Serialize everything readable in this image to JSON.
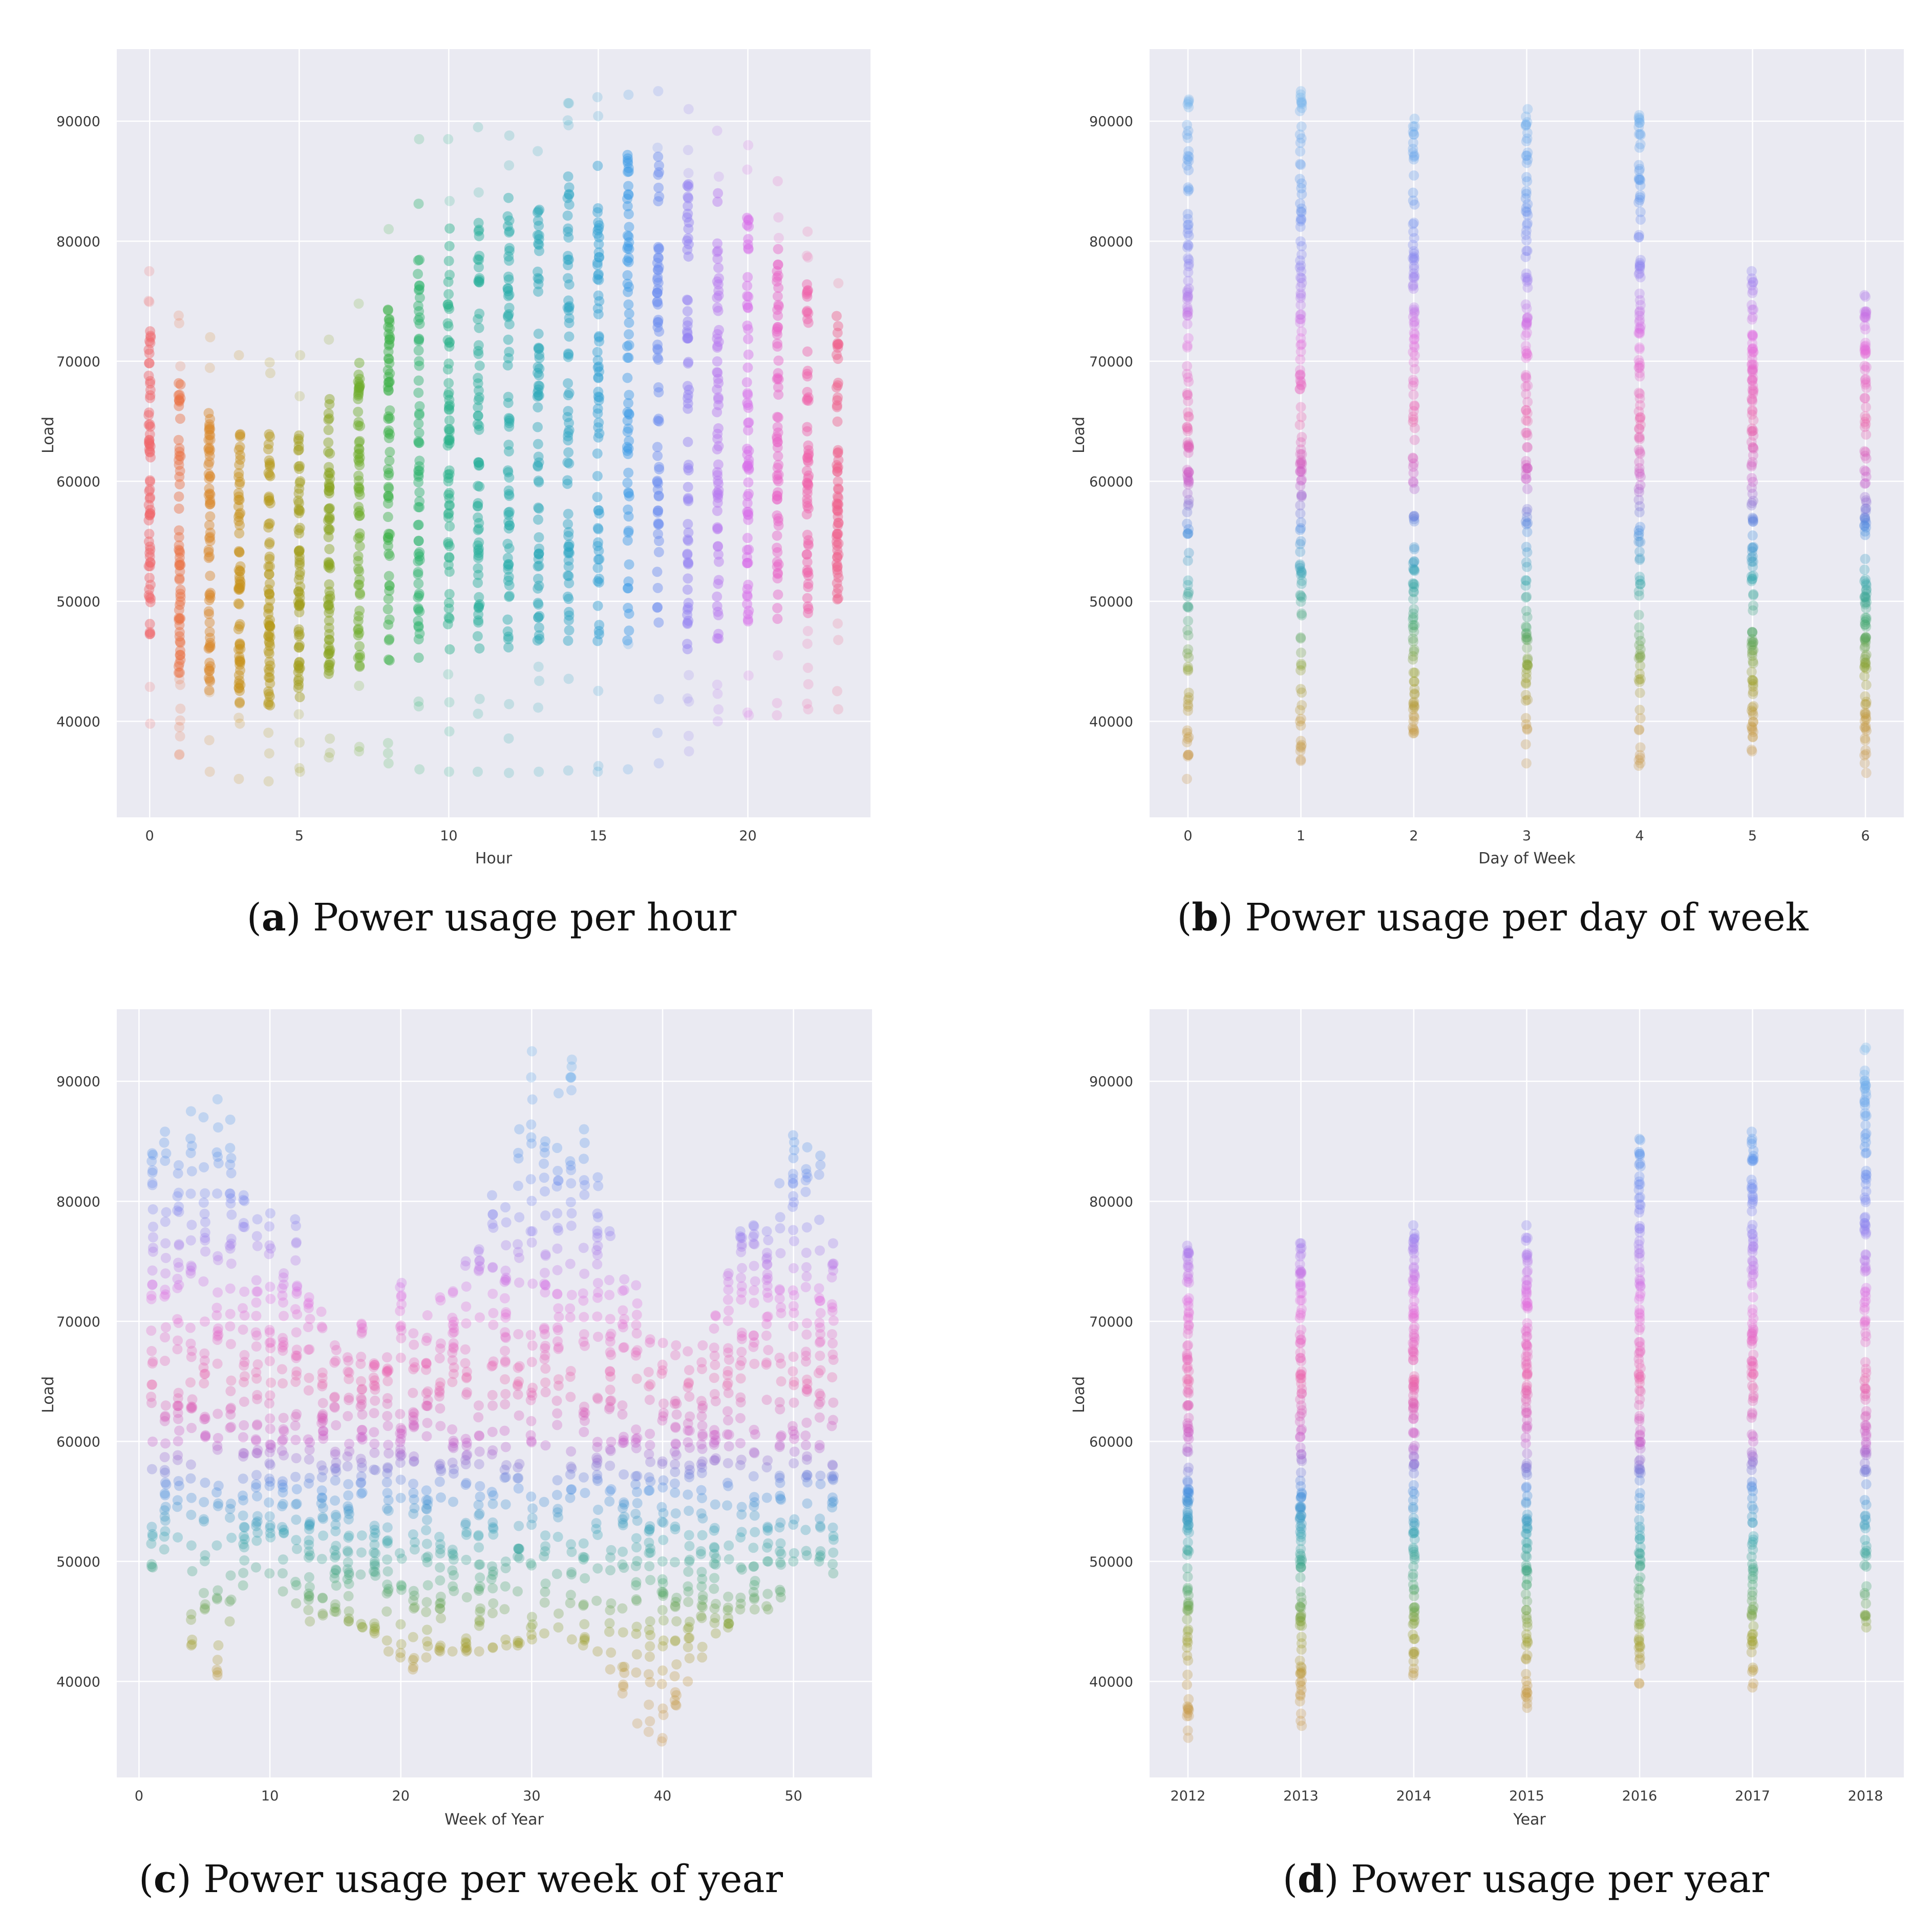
{
  "chart_data": [
    {
      "type": "scatter",
      "caption_letter": "a",
      "caption_text": "Power usage per hour",
      "xlabel": "Hour",
      "ylabel": "Load",
      "xlim": [
        -1.1,
        24.1
      ],
      "ylim": [
        32000,
        96000
      ],
      "xticks": [
        0,
        5,
        10,
        15,
        20
      ],
      "yticks": [
        40000,
        50000,
        60000,
        70000,
        80000,
        90000
      ],
      "grid": true,
      "points_per_group": 70,
      "groups": [
        {
          "x": 0,
          "min": 39800,
          "max": 77500,
          "dense_min": 46500,
          "dense_max": 72500,
          "color": "#f0676b"
        },
        {
          "x": 1,
          "min": 37200,
          "max": 73800,
          "dense_min": 44000,
          "dense_max": 68500,
          "color": "#ea7448"
        },
        {
          "x": 2,
          "min": 35800,
          "max": 72000,
          "dense_min": 42500,
          "dense_max": 66000,
          "color": "#d98a2e"
        },
        {
          "x": 3,
          "min": 35200,
          "max": 70500,
          "dense_min": 41500,
          "dense_max": 64500,
          "color": "#c7921c"
        },
        {
          "x": 4,
          "min": 35000,
          "max": 69900,
          "dense_min": 41200,
          "dense_max": 64000,
          "color": "#b59a1a"
        },
        {
          "x": 5,
          "min": 35800,
          "max": 70500,
          "dense_min": 42000,
          "dense_max": 65000,
          "color": "#a29e1c"
        },
        {
          "x": 6,
          "min": 37000,
          "max": 71800,
          "dense_min": 43800,
          "dense_max": 67000,
          "color": "#8aa522"
        },
        {
          "x": 7,
          "min": 37500,
          "max": 74800,
          "dense_min": 44500,
          "dense_max": 70500,
          "color": "#6fad2c"
        },
        {
          "x": 8,
          "min": 36500,
          "max": 81000,
          "dense_min": 44000,
          "dense_max": 75000,
          "color": "#3fb24a"
        },
        {
          "x": 9,
          "min": 36000,
          "max": 88500,
          "dense_min": 45000,
          "dense_max": 80000,
          "color": "#2eb36c"
        },
        {
          "x": 10,
          "min": 35800,
          "max": 88500,
          "dense_min": 45500,
          "dense_max": 82000,
          "color": "#2bb28a"
        },
        {
          "x": 11,
          "min": 35800,
          "max": 89500,
          "dense_min": 46000,
          "dense_max": 84000,
          "color": "#2aaf9c"
        },
        {
          "x": 12,
          "min": 35700,
          "max": 88800,
          "dense_min": 46000,
          "dense_max": 84000,
          "color": "#2aacaa"
        },
        {
          "x": 13,
          "min": 35800,
          "max": 87500,
          "dense_min": 46500,
          "dense_max": 83000,
          "color": "#2ca9b8"
        },
        {
          "x": 14,
          "min": 35900,
          "max": 91500,
          "dense_min": 46500,
          "dense_max": 86000,
          "color": "#2fa6c4"
        },
        {
          "x": 15,
          "min": 35800,
          "max": 92000,
          "dense_min": 46500,
          "dense_max": 87000,
          "color": "#33a2d2"
        },
        {
          "x": 16,
          "min": 36000,
          "max": 92200,
          "dense_min": 46500,
          "dense_max": 87500,
          "color": "#3f9be6"
        },
        {
          "x": 17,
          "min": 36500,
          "max": 92500,
          "dense_min": 46500,
          "dense_max": 87500,
          "color": "#6c8ef0"
        },
        {
          "x": 18,
          "min": 37500,
          "max": 91000,
          "dense_min": 46000,
          "dense_max": 85000,
          "color": "#9583f2"
        },
        {
          "x": 19,
          "min": 40000,
          "max": 89200,
          "dense_min": 46000,
          "dense_max": 84000,
          "color": "#b77af0"
        },
        {
          "x": 20,
          "min": 40500,
          "max": 88000,
          "dense_min": 48000,
          "dense_max": 83000,
          "color": "#d76ee8"
        },
        {
          "x": 21,
          "min": 40500,
          "max": 85000,
          "dense_min": 48500,
          "dense_max": 80000,
          "color": "#e866c8"
        },
        {
          "x": 22,
          "min": 41000,
          "max": 80800,
          "dense_min": 49000,
          "dense_max": 77000,
          "color": "#ef63ab"
        },
        {
          "x": 23,
          "min": 41000,
          "max": 76500,
          "dense_min": 49000,
          "dense_max": 74000,
          "color": "#f0648e"
        }
      ]
    },
    {
      "type": "scatter",
      "caption_letter": "b",
      "caption_text": "Power usage per day of week",
      "xlabel": "Day of Week",
      "ylabel": "Load",
      "xlim": [
        -0.34,
        6.34
      ],
      "ylim": [
        32000,
        96000
      ],
      "xticks": [
        0,
        1,
        2,
        3,
        4,
        5,
        6
      ],
      "yticks": [
        40000,
        50000,
        60000,
        70000,
        80000,
        90000
      ],
      "grid": true,
      "points_per_group": 130,
      "groups": [
        {
          "x": 0,
          "min": 35200,
          "max": 91800
        },
        {
          "x": 1,
          "min": 36700,
          "max": 92500
        },
        {
          "x": 2,
          "min": 39000,
          "max": 90200
        },
        {
          "x": 3,
          "min": 36500,
          "max": 91000
        },
        {
          "x": 4,
          "min": 36300,
          "max": 90500
        },
        {
          "x": 5,
          "min": 37500,
          "max": 77500
        },
        {
          "x": 6,
          "min": 35700,
          "max": 75500
        }
      ]
    },
    {
      "type": "scatter",
      "caption_letter": "c",
      "caption_text": "Power usage per week of year",
      "xlabel": "Week of Year",
      "ylabel": "Load",
      "xlim": [
        -1.7,
        56.0
      ],
      "ylim": [
        32000,
        96000
      ],
      "xticks": [
        0,
        10,
        20,
        30,
        40,
        50
      ],
      "yticks": [
        40000,
        50000,
        60000,
        70000,
        80000,
        90000
      ],
      "grid": true,
      "points_per_group": 34,
      "groups": [
        {
          "x": 1,
          "min": 49500,
          "max": 84000
        },
        {
          "x": 2,
          "min": 51000,
          "max": 85800
        },
        {
          "x": 3,
          "min": 52000,
          "max": 83000
        },
        {
          "x": 4,
          "min": 43000,
          "max": 87500
        },
        {
          "x": 5,
          "min": 46000,
          "max": 87000
        },
        {
          "x": 6,
          "min": 40500,
          "max": 88500
        },
        {
          "x": 7,
          "min": 45000,
          "max": 86800
        },
        {
          "x": 8,
          "min": 48000,
          "max": 80500
        },
        {
          "x": 9,
          "min": 49500,
          "max": 78500
        },
        {
          "x": 10,
          "min": 49000,
          "max": 79000
        },
        {
          "x": 11,
          "min": 47500,
          "max": 74000
        },
        {
          "x": 12,
          "min": 46500,
          "max": 78500
        },
        {
          "x": 13,
          "min": 45000,
          "max": 72000
        },
        {
          "x": 14,
          "min": 45500,
          "max": 70800
        },
        {
          "x": 15,
          "min": 45800,
          "max": 68000
        },
        {
          "x": 16,
          "min": 45000,
          "max": 67000
        },
        {
          "x": 17,
          "min": 44500,
          "max": 69800
        },
        {
          "x": 18,
          "min": 44000,
          "max": 66500
        },
        {
          "x": 19,
          "min": 42500,
          "max": 67000
        },
        {
          "x": 20,
          "min": 42000,
          "max": 73200
        },
        {
          "x": 21,
          "min": 41000,
          "max": 69000
        },
        {
          "x": 22,
          "min": 42000,
          "max": 70500
        },
        {
          "x": 23,
          "min": 42500,
          "max": 72000
        },
        {
          "x": 24,
          "min": 42500,
          "max": 72500
        },
        {
          "x": 25,
          "min": 42500,
          "max": 75000
        },
        {
          "x": 26,
          "min": 42500,
          "max": 76000
        },
        {
          "x": 27,
          "min": 42800,
          "max": 80500
        },
        {
          "x": 28,
          "min": 43000,
          "max": 79500
        },
        {
          "x": 29,
          "min": 43000,
          "max": 86000
        },
        {
          "x": 30,
          "min": 43500,
          "max": 92500
        },
        {
          "x": 31,
          "min": 44000,
          "max": 85000
        },
        {
          "x": 32,
          "min": 44500,
          "max": 89000
        },
        {
          "x": 33,
          "min": 43500,
          "max": 91800
        },
        {
          "x": 34,
          "min": 43000,
          "max": 86000
        },
        {
          "x": 35,
          "min": 42500,
          "max": 82000
        },
        {
          "x": 36,
          "min": 41000,
          "max": 77500
        },
        {
          "x": 37,
          "min": 39000,
          "max": 73500
        },
        {
          "x": 38,
          "min": 36500,
          "max": 73000
        },
        {
          "x": 39,
          "min": 35800,
          "max": 68500
        },
        {
          "x": 40,
          "min": 35000,
          "max": 68200
        },
        {
          "x": 41,
          "min": 38000,
          "max": 68000
        },
        {
          "x": 42,
          "min": 40000,
          "max": 67500
        },
        {
          "x": 43,
          "min": 42000,
          "max": 68000
        },
        {
          "x": 44,
          "min": 44000,
          "max": 70500
        },
        {
          "x": 45,
          "min": 44500,
          "max": 74000
        },
        {
          "x": 46,
          "min": 46000,
          "max": 77500
        },
        {
          "x": 47,
          "min": 46000,
          "max": 78000
        },
        {
          "x": 48,
          "min": 46000,
          "max": 77500
        },
        {
          "x": 49,
          "min": 47000,
          "max": 81500
        },
        {
          "x": 50,
          "min": 50000,
          "max": 85500
        },
        {
          "x": 51,
          "min": 50500,
          "max": 84500
        },
        {
          "x": 52,
          "min": 50000,
          "max": 83800
        },
        {
          "x": 53,
          "min": 49000,
          "max": 76500
        }
      ]
    },
    {
      "type": "scatter",
      "caption_letter": "d",
      "caption_text": "Power usage per year",
      "xlabel": "Year",
      "ylabel": "Load",
      "xlim": [
        2011.66,
        2018.34
      ],
      "ylim": [
        32000,
        96000
      ],
      "xticks": [
        2012,
        2013,
        2014,
        2015,
        2016,
        2017,
        2018
      ],
      "yticks": [
        40000,
        50000,
        60000,
        70000,
        80000,
        90000
      ],
      "grid": true,
      "points_per_group": 130,
      "groups": [
        {
          "x": 2012,
          "min": 35300,
          "max": 76300
        },
        {
          "x": 2013,
          "min": 36300,
          "max": 76500
        },
        {
          "x": 2014,
          "min": 40500,
          "max": 78000
        },
        {
          "x": 2015,
          "min": 37800,
          "max": 78000
        },
        {
          "x": 2016,
          "min": 39800,
          "max": 85200
        },
        {
          "x": 2017,
          "min": 39500,
          "max": 85800
        },
        {
          "x": 2018,
          "min": 44500,
          "max": 92800
        }
      ]
    }
  ]
}
